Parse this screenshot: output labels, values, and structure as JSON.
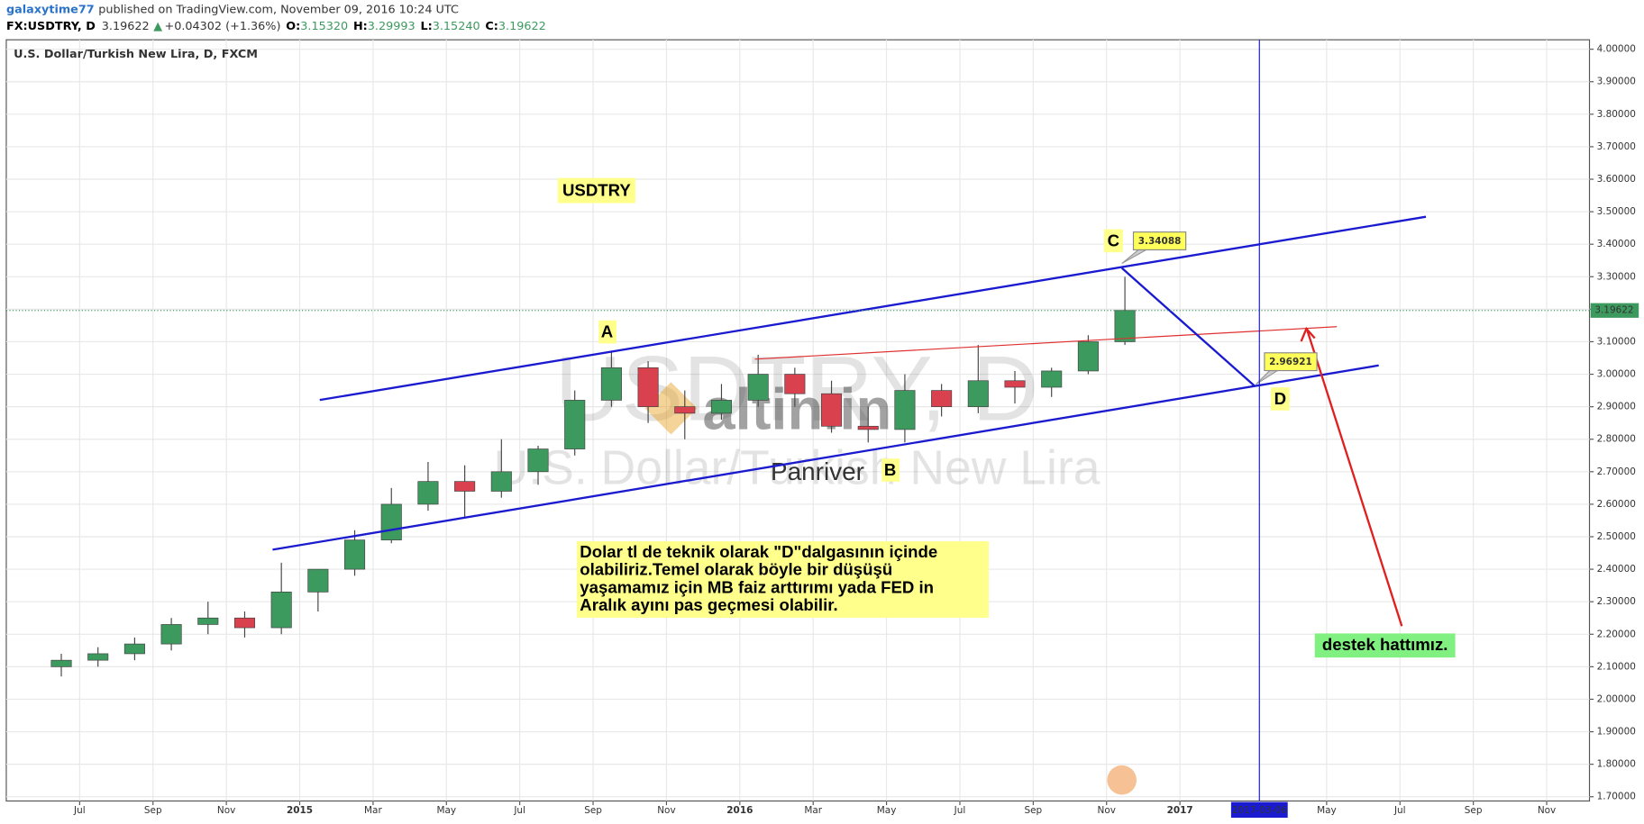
{
  "header": {
    "user": "galaxytime77",
    "published": "published on TradingView.com, November 09, 2016 10:24 UTC",
    "symbol": "FX:USDTRY, D",
    "last": "3.19622",
    "change": "+0.04302 (+1.36%)",
    "ohlc": [
      {
        "label": "O:",
        "value": "3.15320"
      },
      {
        "label": "H:",
        "value": "3.29993"
      },
      {
        "label": "L:",
        "value": "3.15240"
      },
      {
        "label": "C:",
        "value": "3.19622"
      }
    ]
  },
  "chart_data": {
    "type": "candlestick",
    "title": "U.S. Dollar/Turkish New Lira, D, FXCM",
    "x": [
      "2014-06",
      "2014-07",
      "2014-08",
      "2014-09",
      "2014-10",
      "2014-11",
      "2014-12",
      "2015-01",
      "2015-02",
      "2015-03",
      "2015-04",
      "2015-05",
      "2015-06",
      "2015-07",
      "2015-08",
      "2015-09",
      "2015-10",
      "2015-11",
      "2015-12",
      "2016-01",
      "2016-02",
      "2016-03",
      "2016-04",
      "2016-05",
      "2016-06",
      "2016-07",
      "2016-08",
      "2016-09",
      "2016-10",
      "2016-11"
    ],
    "open": [
      2.1,
      2.12,
      2.14,
      2.17,
      2.23,
      2.25,
      2.22,
      2.33,
      2.4,
      2.49,
      2.6,
      2.67,
      2.64,
      2.7,
      2.77,
      2.92,
      3.02,
      2.9,
      2.88,
      2.92,
      3.0,
      2.94,
      2.84,
      2.83,
      2.95,
      2.9,
      2.98,
      2.96,
      3.01,
      3.1
    ],
    "high": [
      2.14,
      2.16,
      2.19,
      2.25,
      2.3,
      2.27,
      2.42,
      2.4,
      2.52,
      2.65,
      2.73,
      2.72,
      2.8,
      2.78,
      2.95,
      3.07,
      3.04,
      2.95,
      2.97,
      3.06,
      3.02,
      2.98,
      2.9,
      3.0,
      2.97,
      3.09,
      3.01,
      3.02,
      3.12,
      3.29993
    ],
    "low": [
      2.07,
      2.1,
      2.12,
      2.15,
      2.2,
      2.19,
      2.2,
      2.27,
      2.38,
      2.48,
      2.58,
      2.56,
      2.62,
      2.66,
      2.75,
      2.9,
      2.85,
      2.8,
      2.86,
      2.9,
      2.9,
      2.82,
      2.79,
      2.79,
      2.87,
      2.88,
      2.91,
      2.93,
      3.0,
      3.09
    ],
    "close": [
      2.12,
      2.14,
      2.17,
      2.23,
      2.25,
      2.22,
      2.33,
      2.4,
      2.49,
      2.6,
      2.67,
      2.64,
      2.7,
      2.77,
      2.92,
      3.02,
      2.9,
      2.88,
      2.92,
      3.0,
      2.94,
      2.84,
      2.83,
      2.95,
      2.9,
      2.98,
      2.96,
      3.01,
      3.1,
      3.19622
    ],
    "up_color": "#3d9a5f",
    "down_color": "#d9414f",
    "xlim": [
      "2014-05-01",
      "2017-12-06"
    ],
    "ylim": [
      1.687,
      4.029
    ],
    "xticks": [
      {
        "value": "2014-07",
        "label": "Jul"
      },
      {
        "value": "2014-09",
        "label": "Sep"
      },
      {
        "value": "2014-11",
        "label": "Nov"
      },
      {
        "value": "2015-01",
        "label": "2015"
      },
      {
        "value": "2015-03",
        "label": "Mar"
      },
      {
        "value": "2015-05",
        "label": "May"
      },
      {
        "value": "2015-07",
        "label": "Jul"
      },
      {
        "value": "2015-09",
        "label": "Sep"
      },
      {
        "value": "2015-11",
        "label": "Nov"
      },
      {
        "value": "2016-01",
        "label": "2016"
      },
      {
        "value": "2016-03",
        "label": "Mar"
      },
      {
        "value": "2016-05",
        "label": "May"
      },
      {
        "value": "2016-07",
        "label": "Jul"
      },
      {
        "value": "2016-09",
        "label": "Sep"
      },
      {
        "value": "2016-11",
        "label": "Nov"
      },
      {
        "value": "2017-01",
        "label": "2017"
      },
      {
        "value": "2017-05",
        "label": "May"
      },
      {
        "value": "2017-07",
        "label": "Jul"
      },
      {
        "value": "2017-09",
        "label": "Sep"
      },
      {
        "value": "2017-11",
        "label": "Nov"
      }
    ],
    "yticks": [
      {
        "value": 1.7,
        "label": "1.70000"
      },
      {
        "value": 1.8,
        "label": "1.80000"
      },
      {
        "value": 1.9,
        "label": "1.90000"
      },
      {
        "value": 2.0,
        "label": "2.00000"
      },
      {
        "value": 2.1,
        "label": "2.10000"
      },
      {
        "value": 2.2,
        "label": "2.20000"
      },
      {
        "value": 2.3,
        "label": "2.30000"
      },
      {
        "value": 2.4,
        "label": "2.40000"
      },
      {
        "value": 2.5,
        "label": "2.50000"
      },
      {
        "value": 2.6,
        "label": "2.60000"
      },
      {
        "value": 2.7,
        "label": "2.70000"
      },
      {
        "value": 2.8,
        "label": "2.80000"
      },
      {
        "value": 2.9,
        "label": "2.90000"
      },
      {
        "value": 3.0,
        "label": "3.00000"
      },
      {
        "value": 3.1,
        "label": "3.10000"
      },
      {
        "value": 3.2,
        "label": "3.20000"
      },
      {
        "value": 3.3,
        "label": "3.30000"
      },
      {
        "value": 3.4,
        "label": "3.40000"
      },
      {
        "value": 3.5,
        "label": "3.50000"
      },
      {
        "value": 3.6,
        "label": "3.60000"
      },
      {
        "value": 3.7,
        "label": "3.70000"
      },
      {
        "value": 3.8,
        "label": "3.80000"
      },
      {
        "value": 3.9,
        "label": "3.90000"
      },
      {
        "value": 4.0,
        "label": "4.00000"
      }
    ],
    "grid": true,
    "last_price": {
      "value": 3.19622,
      "label": "3.19622"
    },
    "crosshair_x": "2017-03-06",
    "annotations": {
      "symbol": "USDTRY",
      "waves": [
        "A",
        "B",
        "C",
        "D"
      ],
      "callouts": [
        3.34088,
        2.96921
      ],
      "note": [
        "Dolar tl de teknik olarak \"D\"dalgasının içinde",
        "olabiliriz.Temel olarak böyle bir düşüşü",
        "yaşamamız için MB faiz arttırımı yada FED in",
        "Aralık ayını pas geçmesi olabilir."
      ],
      "support": "destek hattımız.",
      "watermark": [
        "USDTRY, D",
        "U.S. Dollar/Turkish New Lira"
      ],
      "logo": "altin.in",
      "brand": "Panriver"
    }
  }
}
